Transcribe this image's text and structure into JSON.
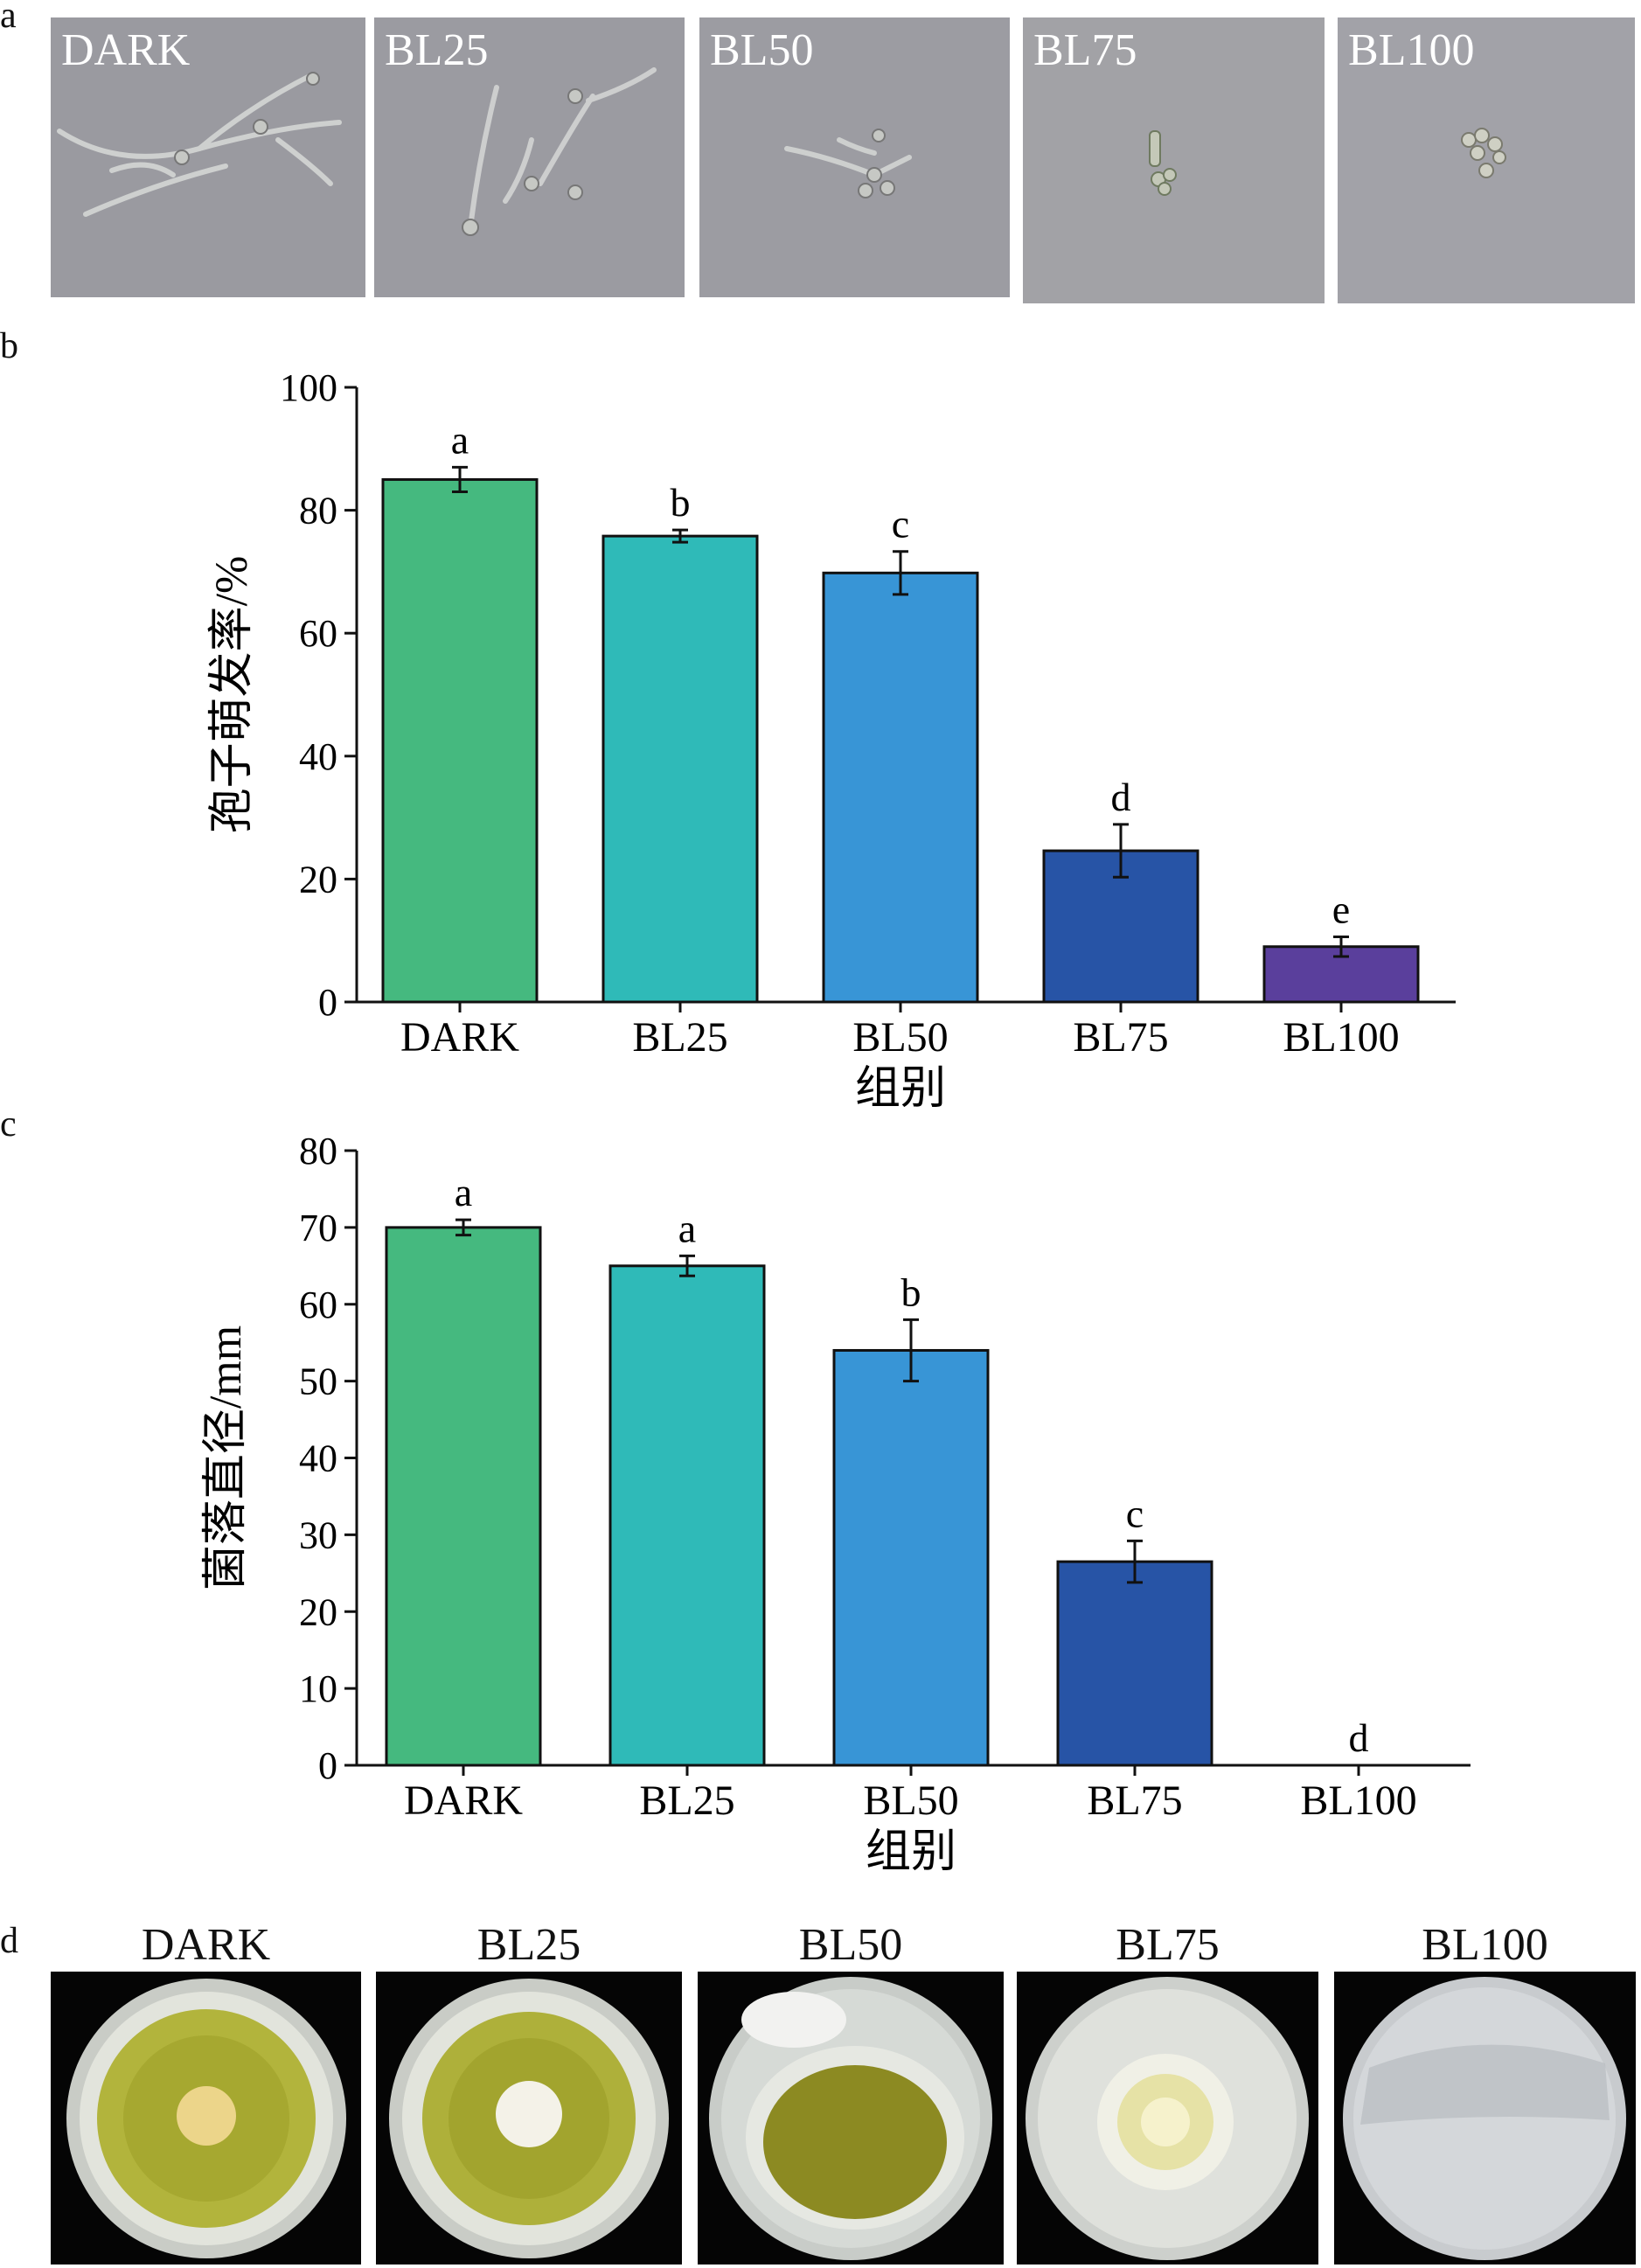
{
  "panels": {
    "a": {
      "letter": "a",
      "labels": [
        "DARK",
        "BL25",
        "BL50",
        "BL75",
        "BL100"
      ]
    },
    "b": {
      "letter": "b"
    },
    "c": {
      "letter": "c"
    },
    "d": {
      "letter": "d",
      "labels": [
        "DARK",
        "BL25",
        "BL50",
        "BL75",
        "BL100"
      ]
    }
  },
  "colors": {
    "DARK": "#45b97f",
    "BL25": "#2fbab8",
    "BL50": "#3895d6",
    "BL75": "#2754a6",
    "BL100": "#5a3f9c"
  },
  "chart_data": [
    {
      "type": "bar",
      "panel": "b",
      "categories": [
        "DARK",
        "BL25",
        "BL50",
        "BL75",
        "BL100"
      ],
      "values": [
        85,
        75.8,
        69.8,
        24.6,
        9
      ],
      "errors": [
        2,
        1,
        3.5,
        4.3,
        1.6
      ],
      "significance": [
        "a",
        "b",
        "c",
        "d",
        "e"
      ],
      "xlabel": "组别",
      "ylabel": "孢子萌发率/%",
      "ylim": [
        0,
        100
      ],
      "yticks": [
        0,
        20,
        40,
        60,
        80,
        100
      ],
      "grid": false
    },
    {
      "type": "bar",
      "panel": "c",
      "categories": [
        "DARK",
        "BL25",
        "BL50",
        "BL75",
        "BL100"
      ],
      "values": [
        70,
        65,
        54,
        26.5,
        0
      ],
      "errors": [
        1,
        1.3,
        4,
        2.7,
        0
      ],
      "significance": [
        "a",
        "a",
        "b",
        "c",
        "d"
      ],
      "xlabel": "组别",
      "ylabel": "菌落直径/mm",
      "ylim": [
        0,
        80
      ],
      "yticks": [
        0,
        10,
        20,
        30,
        40,
        50,
        60,
        70,
        80
      ],
      "grid": false
    }
  ]
}
